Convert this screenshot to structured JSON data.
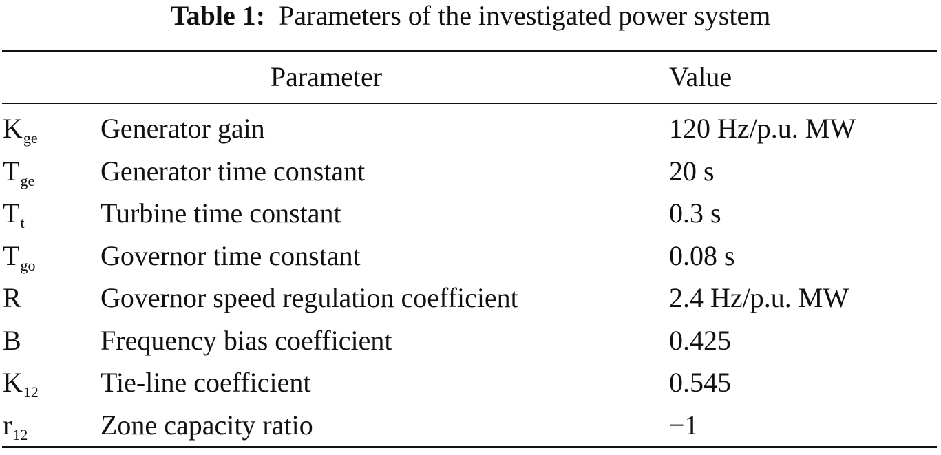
{
  "caption": {
    "label": "Table 1:",
    "text": "Parameters of the investigated power system"
  },
  "table": {
    "headers": {
      "parameter": "Parameter",
      "value": "Value"
    },
    "rows": [
      {
        "symbol": "K",
        "subscript": "ge",
        "description": "Generator gain",
        "value": "120 Hz/p.u. MW"
      },
      {
        "symbol": "T",
        "subscript": "ge",
        "description": "Generator time constant",
        "value": "20 s"
      },
      {
        "symbol": "T",
        "subscript": "t",
        "description": "Turbine time constant",
        "value": "0.3 s"
      },
      {
        "symbol": "T",
        "subscript": "go",
        "description": "Governor time constant",
        "value": "0.08 s"
      },
      {
        "symbol": "R",
        "subscript": "",
        "description": "Governor speed regulation coefficient",
        "value": "2.4 Hz/p.u. MW"
      },
      {
        "symbol": "B",
        "subscript": "",
        "description": "Frequency bias coefficient",
        "value": "0.425"
      },
      {
        "symbol": "K",
        "subscript": "12",
        "description": "Tie-line coefficient",
        "value": "0.545"
      },
      {
        "symbol": "r",
        "subscript": "12",
        "description": "Zone capacity ratio",
        "value": "−1"
      }
    ]
  }
}
